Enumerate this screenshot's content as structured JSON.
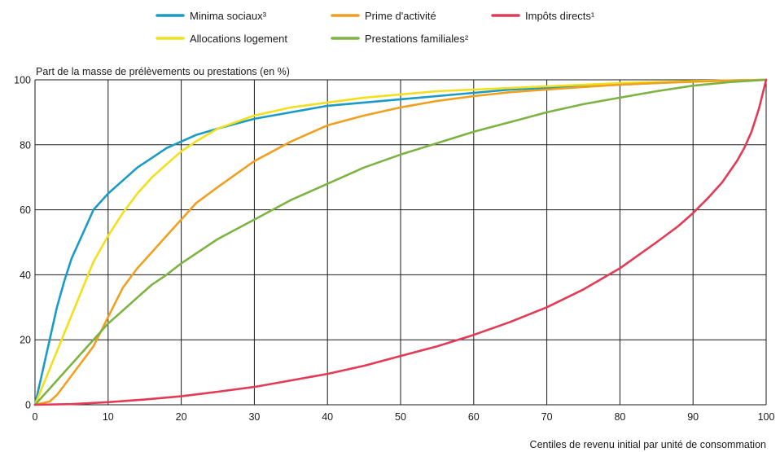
{
  "chart_data": {
    "type": "line",
    "title": "",
    "ylabel": "Part de la masse de prélèvements ou prestations (en %)",
    "xlabel": "Centiles de revenu initial par unité de consommation",
    "xlim": [
      0,
      100
    ],
    "ylim": [
      0,
      100
    ],
    "xticks": [
      "0",
      "10",
      "20",
      "30",
      "40",
      "50",
      "60",
      "70",
      "80",
      "90",
      "100"
    ],
    "yticks": [
      "0",
      "20",
      "40",
      "60",
      "80",
      "100"
    ],
    "grid": true,
    "legend_position": "top",
    "series": [
      {
        "name": "Minima sociaux³",
        "color": "#1a9bc6",
        "x": [
          0,
          1,
          2,
          3,
          4,
          5,
          6,
          7,
          8,
          10,
          12,
          14,
          16,
          18,
          20,
          22,
          25,
          30,
          35,
          40,
          45,
          50,
          55,
          60,
          65,
          70,
          75,
          80,
          85,
          90,
          95,
          100
        ],
        "y": [
          0,
          10,
          20,
          30,
          38,
          45,
          50,
          55,
          60,
          65,
          69,
          73,
          76,
          79,
          81,
          83,
          85,
          88,
          90,
          92,
          93,
          94,
          95,
          96,
          97,
          97.5,
          98,
          98.5,
          99,
          99.5,
          99.8,
          100
        ]
      },
      {
        "name": "Allocations logement",
        "color": "#f2e01c",
        "x": [
          0,
          2,
          4,
          6,
          8,
          10,
          12,
          14,
          16,
          18,
          20,
          22,
          25,
          30,
          35,
          40,
          45,
          50,
          55,
          60,
          65,
          70,
          75,
          80,
          85,
          90,
          95,
          100
        ],
        "y": [
          0,
          11,
          22,
          33,
          44,
          52,
          59,
          65,
          70,
          74,
          78,
          81,
          85,
          89,
          91.5,
          93,
          94.5,
          95.5,
          96.5,
          97,
          97.5,
          98,
          98.5,
          99,
          99.3,
          99.6,
          99.8,
          100
        ]
      },
      {
        "name": "Prime d'activité",
        "color": "#f0a020",
        "x": [
          0,
          2,
          3,
          4,
          6,
          8,
          10,
          12,
          14,
          16,
          18,
          20,
          22,
          25,
          30,
          35,
          40,
          45,
          50,
          55,
          60,
          65,
          70,
          75,
          80,
          85,
          90,
          95,
          100
        ],
        "y": [
          0,
          1,
          3,
          6,
          12,
          18,
          27,
          36,
          42,
          47,
          52,
          57,
          62,
          67,
          75,
          81,
          86,
          89,
          91.5,
          93.5,
          95,
          96.2,
          97,
          97.8,
          98.5,
          99,
          99.4,
          99.8,
          100
        ]
      },
      {
        "name": "Prestations familiales²",
        "color": "#7cb342",
        "x": [
          0,
          2,
          4,
          6,
          8,
          10,
          12,
          14,
          16,
          18,
          20,
          25,
          30,
          35,
          40,
          45,
          50,
          55,
          60,
          65,
          70,
          75,
          80,
          85,
          90,
          95,
          100
        ],
        "y": [
          0,
          5,
          10,
          15,
          20,
          25,
          29,
          33,
          37,
          40,
          43.5,
          51,
          57,
          63,
          68,
          73,
          77,
          80.5,
          84,
          87,
          90,
          92.5,
          94.5,
          96.5,
          98.2,
          99.3,
          100
        ]
      },
      {
        "name": "Impôts directs¹",
        "color": "#e33a55",
        "x": [
          0,
          5,
          10,
          15,
          20,
          25,
          30,
          35,
          40,
          45,
          50,
          55,
          60,
          65,
          70,
          75,
          80,
          85,
          88,
          90,
          92,
          94,
          96,
          97,
          98,
          99,
          100
        ],
        "y": [
          0,
          0.2,
          0.8,
          1.6,
          2.6,
          4,
          5.5,
          7.5,
          9.5,
          12,
          15,
          18,
          21.5,
          25.5,
          30,
          35.5,
          42,
          50,
          55,
          59,
          63.5,
          68.5,
          75,
          79,
          84,
          91,
          100
        ]
      }
    ]
  }
}
